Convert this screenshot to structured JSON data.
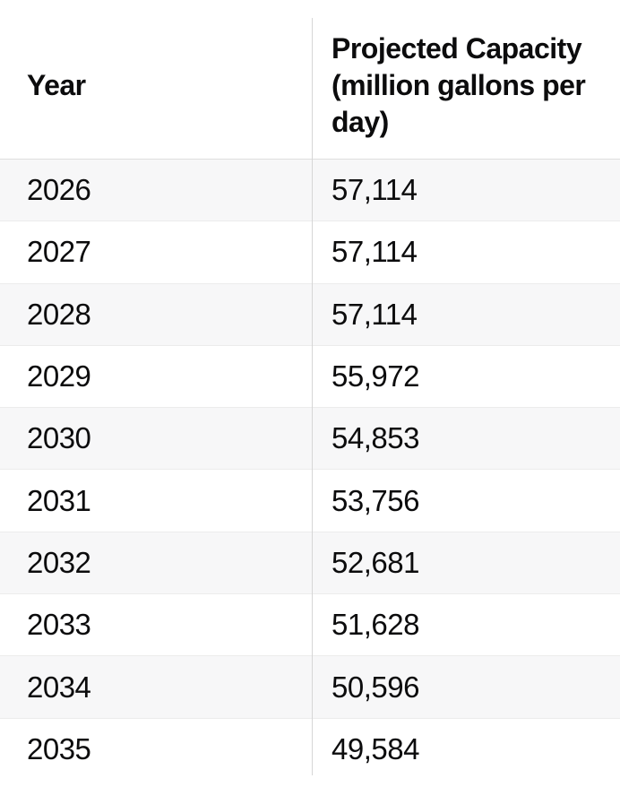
{
  "table": {
    "columns": [
      {
        "label": "Year"
      },
      {
        "label": "Projected Capacity (million gallons per day)",
        "label_lines": [
          "Projected Capacity",
          "(million gallons per",
          "day)"
        ]
      }
    ],
    "rows": [
      {
        "year": "2026",
        "capacity": "57,114"
      },
      {
        "year": "2027",
        "capacity": "57,114"
      },
      {
        "year": "2028",
        "capacity": "57,114"
      },
      {
        "year": "2029",
        "capacity": "55,972"
      },
      {
        "year": "2030",
        "capacity": "54,853"
      },
      {
        "year": "2031",
        "capacity": "53,756"
      },
      {
        "year": "2032",
        "capacity": "52,681"
      },
      {
        "year": "2033",
        "capacity": "51,628"
      },
      {
        "year": "2034",
        "capacity": "50,596"
      },
      {
        "year": "2035",
        "capacity": "49,584"
      }
    ]
  },
  "chart_data": {
    "type": "table",
    "title": "",
    "columns": [
      "Year",
      "Projected Capacity (million gallons per day)"
    ],
    "categories": [
      "2026",
      "2027",
      "2028",
      "2029",
      "2030",
      "2031",
      "2032",
      "2033",
      "2034",
      "2035"
    ],
    "values": [
      57114,
      57114,
      57114,
      55972,
      54853,
      53756,
      52681,
      51628,
      50596,
      49584
    ],
    "xlabel": "Year",
    "ylabel": "Projected Capacity (million gallons per day)"
  },
  "colors": {
    "background": "#ffffff",
    "row_alt_background": "#f7f7f8",
    "header_border": "#dedede",
    "row_border": "#ececec",
    "column_divider": "#d6d6d6",
    "text": "#0c0c0d"
  }
}
